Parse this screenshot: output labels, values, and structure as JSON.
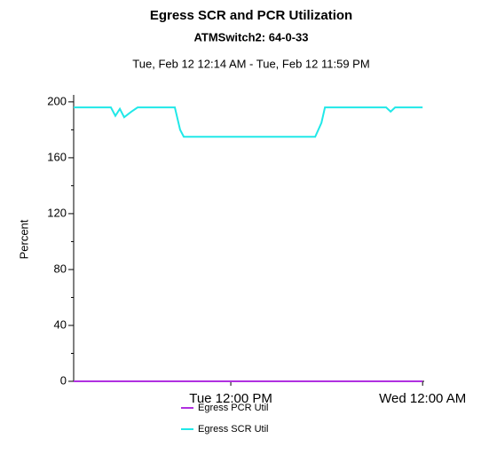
{
  "chart_data": {
    "type": "line",
    "title": "Egress SCR and PCR Utilization",
    "subtitle": "ATMSwitch2: 64-0-33",
    "date_range": "Tue, Feb 12 12:14 AM - Tue, Feb 12 11:59 PM",
    "y_label": "Percent",
    "xlim": [
      2.17,
      24.1
    ],
    "xticks": [
      {
        "value": 12,
        "label": "Tue 12:00 PM"
      },
      {
        "value": 24,
        "label": "Wed 12:00 AM"
      }
    ],
    "ylim": [
      0,
      205
    ],
    "yticks": [
      0,
      40,
      80,
      120,
      160,
      200
    ],
    "yminorticks": [
      20,
      60,
      100,
      140,
      180
    ],
    "series": [
      {
        "name": "Egress PCR Util",
        "color": "#b030e0",
        "x": [
          2.17,
          8.5,
          17.28,
          24
        ],
        "values": [
          0,
          0,
          0,
          0
        ]
      },
      {
        "name": "Egress SCR Util",
        "color": "#20e8e8",
        "x": [
          2.17,
          4.5,
          4.78,
          5.06,
          5.33,
          5.78,
          6.17,
          8.5,
          8.83,
          9.06,
          17.28,
          17.67,
          17.89,
          21.72,
          22,
          22.28,
          24
        ],
        "values": [
          196,
          196,
          190,
          195,
          189,
          193,
          196,
          196,
          180,
          175,
          175,
          185,
          196,
          196,
          193,
          196,
          196
        ]
      }
    ]
  }
}
